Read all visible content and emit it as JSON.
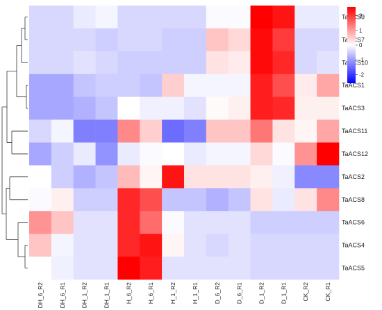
{
  "chart_data": {
    "type": "heatmap",
    "title": "",
    "columns": [
      "DH_6_R2",
      "DH_6_R1",
      "DH_1_R2",
      "DH_1_R1",
      "H_6_R2",
      "H_6_R1",
      "H_1_R2",
      "H_1_R1",
      "D_6_R2",
      "D_6_R1",
      "D_1_R2",
      "D_1_R1",
      "CK_R2",
      "CK_R1"
    ],
    "rows": [
      "TaACS9",
      "TaACS7",
      "TaACS10",
      "TaACS1",
      "TaACS3",
      "TaACS11",
      "TaACS12",
      "TaACS2",
      "TaACS8",
      "TaACS6",
      "TaACS4",
      "TaACS5"
    ],
    "values": [
      [
        -0.4,
        -0.4,
        -0.2,
        -0.1,
        -0.4,
        -0.4,
        -0.4,
        -0.4,
        -0.05,
        -0.05,
        2.6,
        2.4,
        -0.2,
        -0.2
      ],
      [
        -0.4,
        -0.4,
        -0.4,
        -0.5,
        -0.4,
        -0.4,
        -0.5,
        -0.5,
        0.6,
        0.4,
        2.5,
        2.0,
        -0.4,
        -0.4
      ],
      [
        -0.4,
        -0.4,
        -0.3,
        -0.4,
        -0.5,
        -0.5,
        -0.5,
        -0.5,
        0.3,
        0.2,
        2.5,
        2.2,
        -0.4,
        -0.3
      ],
      [
        -0.9,
        -0.9,
        -0.6,
        -0.5,
        -0.5,
        -0.6,
        0.5,
        -0.1,
        -0.1,
        -0.1,
        2.3,
        1.8,
        0.2,
        0.9
      ],
      [
        -0.9,
        -0.9,
        -0.8,
        -0.6,
        0.0,
        -0.15,
        -0.15,
        -0.3,
        0.05,
        0.15,
        2.3,
        2.2,
        0.15,
        0.15
      ],
      [
        -0.4,
        -0.1,
        -1.3,
        -1.3,
        1.2,
        0.5,
        -1.5,
        -1.3,
        0.6,
        0.6,
        1.4,
        0.3,
        0.1,
        0.9
      ],
      [
        -0.9,
        -0.5,
        -0.2,
        -1.1,
        -0.2,
        -0.05,
        0.0,
        -0.2,
        -0.1,
        -0.1,
        0.4,
        -0.05,
        1.1,
        2.6
      ],
      [
        0.0,
        -0.5,
        -0.8,
        -0.6,
        0.7,
        0.1,
        2.4,
        0.3,
        0.3,
        0.3,
        0.15,
        -0.15,
        -1.2,
        -1.2
      ],
      [
        -0.05,
        0.15,
        -0.5,
        -0.5,
        2.2,
        1.8,
        -0.6,
        -0.6,
        -0.8,
        -0.6,
        0.3,
        -0.2,
        0.3,
        1.2
      ],
      [
        1.1,
        0.6,
        -0.3,
        -0.3,
        2.2,
        1.5,
        -0.05,
        -0.3,
        -0.3,
        -0.3,
        -0.5,
        -0.5,
        -0.5,
        -0.5
      ],
      [
        0.6,
        -0.1,
        -0.3,
        -0.3,
        2.2,
        2.4,
        0.1,
        -0.3,
        -0.4,
        -0.3,
        -0.4,
        -0.4,
        -0.4,
        -0.4
      ],
      [
        0.0,
        -0.15,
        -0.3,
        -0.3,
        2.6,
        2.3,
        -0.3,
        -0.3,
        -0.3,
        -0.3,
        -0.4,
        -0.4,
        -0.4,
        -0.4
      ]
    ],
    "color_scale": {
      "min": -2.6,
      "max": 2.6,
      "low_color": "#0000ff",
      "mid_color": "#ffffff",
      "high_color": "#ff0000",
      "ticks": [
        2,
        1,
        0,
        -1,
        -2
      ]
    },
    "row_dendrogram": true,
    "legend_position": "top-right"
  }
}
